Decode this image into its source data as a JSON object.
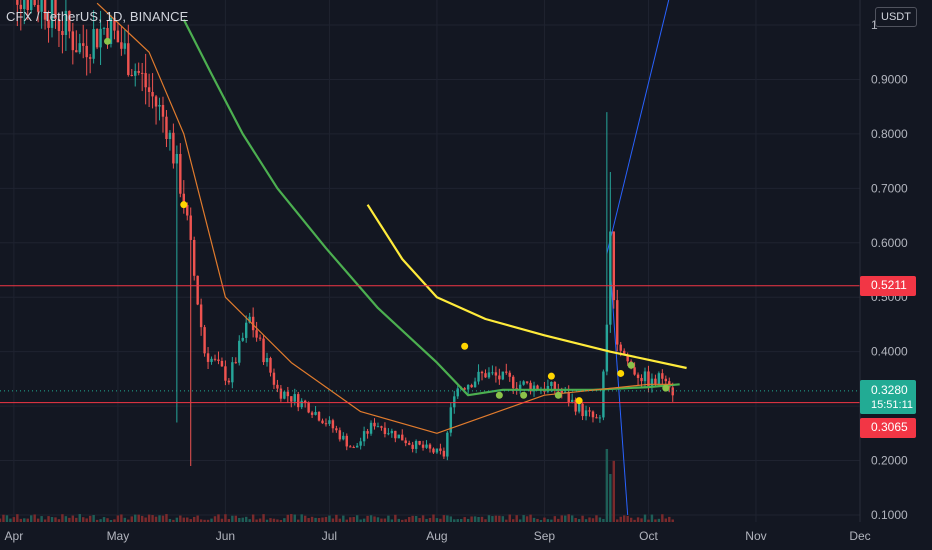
{
  "header": {
    "symbol_title": "CFX / TetherUS, 1D, BINANCE",
    "currency_button": "USDT"
  },
  "colors": {
    "background": "#131722",
    "grid": "#1f2330",
    "up": "#26a69a",
    "down": "#ef5350",
    "ma_green": "#4caf50",
    "ma_yellow": "#ffeb3b",
    "ma_orange": "#e17b2d",
    "band_blue": "#2962ff",
    "horizontal_line": "#f23645",
    "last_price": "#22ab94"
  },
  "chart_data": {
    "type": "candlestick",
    "title": "CFX / TetherUS, 1D, BINANCE",
    "x_tick_labels": [
      "Apr",
      "May",
      "Jun",
      "Jul",
      "Aug",
      "Sep",
      "Oct",
      "Nov",
      "Dec"
    ],
    "x_tick_dates": [
      "2022-04-01",
      "2022-05-01",
      "2022-06-01",
      "2022-07-01",
      "2022-08-01",
      "2022-09-01",
      "2022-10-01",
      "2022-11-01",
      "2022-12-01"
    ],
    "y_tick_labels": [
      "0.1000",
      "0.2000",
      "0.3000",
      "0.4000",
      "0.5000",
      "0.6000",
      "0.7000",
      "0.8000",
      "0.9000",
      "1"
    ],
    "y_ticks": [
      0.1,
      0.2,
      0.3,
      0.4,
      0.5,
      0.6,
      0.7,
      0.8,
      0.9,
      1.0
    ],
    "ylim": [
      0.1,
      1.0
    ],
    "xlim": [
      "2022-03-28",
      "2022-12-01"
    ],
    "horizontal_lines": [
      {
        "price": 0.5211,
        "label": "0.5211",
        "color": "#f23645"
      },
      {
        "price": 0.3065,
        "label": "0.3065",
        "color": "#f23645"
      }
    ],
    "last_price": {
      "price": 0.328,
      "label": "0.3280",
      "countdown": "15:51:11"
    },
    "price_anchors": [
      [
        "2022-03-28",
        1.08
      ],
      [
        "2022-04-10",
        1.04
      ],
      [
        "2022-04-20",
        0.96
      ],
      [
        "2022-04-28",
        1.0
      ],
      [
        "2022-05-08",
        0.9
      ],
      [
        "2022-05-15",
        0.82
      ],
      [
        "2022-05-20",
        0.68
      ],
      [
        "2022-05-26",
        0.4
      ],
      [
        "2022-06-02",
        0.35
      ],
      [
        "2022-06-08",
        0.46
      ],
      [
        "2022-06-16",
        0.33
      ],
      [
        "2022-06-25",
        0.3
      ],
      [
        "2022-07-02",
        0.26
      ],
      [
        "2022-07-08",
        0.22
      ],
      [
        "2022-07-14",
        0.27
      ],
      [
        "2022-07-25",
        0.23
      ],
      [
        "2022-08-03",
        0.21
      ],
      [
        "2022-08-06",
        0.33
      ],
      [
        "2022-08-15",
        0.36
      ],
      [
        "2022-08-25",
        0.34
      ],
      [
        "2022-09-05",
        0.33
      ],
      [
        "2022-09-12",
        0.29
      ],
      [
        "2022-09-17",
        0.27
      ],
      [
        "2022-09-19",
        0.45
      ],
      [
        "2022-09-20",
        0.6
      ],
      [
        "2022-09-22",
        0.42
      ],
      [
        "2022-09-26",
        0.37
      ],
      [
        "2022-10-02",
        0.34
      ],
      [
        "2022-10-06",
        0.36
      ],
      [
        "2022-10-08",
        0.328
      ]
    ],
    "spikes": [
      {
        "date": "2022-05-22",
        "low": 0.19
      },
      {
        "date": "2022-05-18",
        "low": 0.27
      },
      {
        "date": "2022-09-19",
        "high": 0.84
      },
      {
        "date": "2022-09-20",
        "high": 0.73
      }
    ],
    "series": [
      {
        "name": "",
        "type": "line",
        "color": "#4caf50",
        "points": [
          [
            "2022-05-20",
            1.01
          ],
          [
            "2022-05-28",
            0.91
          ],
          [
            "2022-06-06",
            0.8
          ],
          [
            "2022-06-16",
            0.7
          ],
          [
            "2022-06-30",
            0.59
          ],
          [
            "2022-07-15",
            0.48
          ],
          [
            "2022-08-01",
            0.38
          ],
          [
            "2022-08-10",
            0.32
          ],
          [
            "2022-08-20",
            0.33
          ],
          [
            "2022-09-01",
            0.33
          ],
          [
            "2022-09-15",
            0.33
          ],
          [
            "2022-10-01",
            0.335
          ],
          [
            "2022-10-10",
            0.34
          ]
        ]
      },
      {
        "name": "",
        "type": "line",
        "color": "#ffeb3b",
        "points": [
          [
            "2022-07-12",
            0.67
          ],
          [
            "2022-07-22",
            0.57
          ],
          [
            "2022-08-01",
            0.5
          ],
          [
            "2022-08-15",
            0.46
          ],
          [
            "2022-09-01",
            0.43
          ],
          [
            "2022-09-20",
            0.4
          ],
          [
            "2022-10-01",
            0.385
          ],
          [
            "2022-10-12",
            0.37
          ]
        ]
      },
      {
        "name": "",
        "type": "line",
        "color": "#e17b2d",
        "points": [
          [
            "2022-04-25",
            1.04
          ],
          [
            "2022-05-10",
            0.95
          ],
          [
            "2022-05-20",
            0.8
          ],
          [
            "2022-06-01",
            0.5
          ],
          [
            "2022-06-20",
            0.38
          ],
          [
            "2022-07-10",
            0.29
          ],
          [
            "2022-08-01",
            0.25
          ],
          [
            "2022-09-01",
            0.32
          ],
          [
            "2022-10-01",
            0.34
          ],
          [
            "2022-10-08",
            0.34
          ]
        ]
      }
    ],
    "trend_lines": [
      {
        "color": "#2962ff",
        "from": [
          "2022-09-19",
          0.58
        ],
        "to": [
          "2022-10-07",
          1.05
        ]
      },
      {
        "color": "#2962ff",
        "from": [
          "2022-09-20",
          0.55
        ],
        "to": [
          "2022-09-25",
          0.1
        ]
      }
    ],
    "markers": [
      {
        "date": "2022-05-20",
        "price": 0.67,
        "color": "#ffd600"
      },
      {
        "date": "2022-04-28",
        "price": 0.97,
        "color": "#8bc34a"
      },
      {
        "date": "2022-08-09",
        "price": 0.41,
        "color": "#ffd600"
      },
      {
        "date": "2022-08-19",
        "price": 0.32,
        "color": "#8bc34a"
      },
      {
        "date": "2022-08-26",
        "price": 0.32,
        "color": "#8bc34a"
      },
      {
        "date": "2022-09-03",
        "price": 0.355,
        "color": "#ffd600"
      },
      {
        "date": "2022-09-05",
        "price": 0.32,
        "color": "#8bc34a"
      },
      {
        "date": "2022-09-11",
        "price": 0.31,
        "color": "#ffd600"
      },
      {
        "date": "2022-09-23",
        "price": 0.36,
        "color": "#ffd600"
      },
      {
        "date": "2022-09-26",
        "price": 0.375,
        "color": "#8bc34a"
      },
      {
        "date": "2022-10-06",
        "price": 0.333,
        "color": "#8bc34a"
      }
    ],
    "volume_spike_dates": [
      "2022-09-19",
      "2022-09-20",
      "2022-09-21"
    ],
    "grid": true
  }
}
